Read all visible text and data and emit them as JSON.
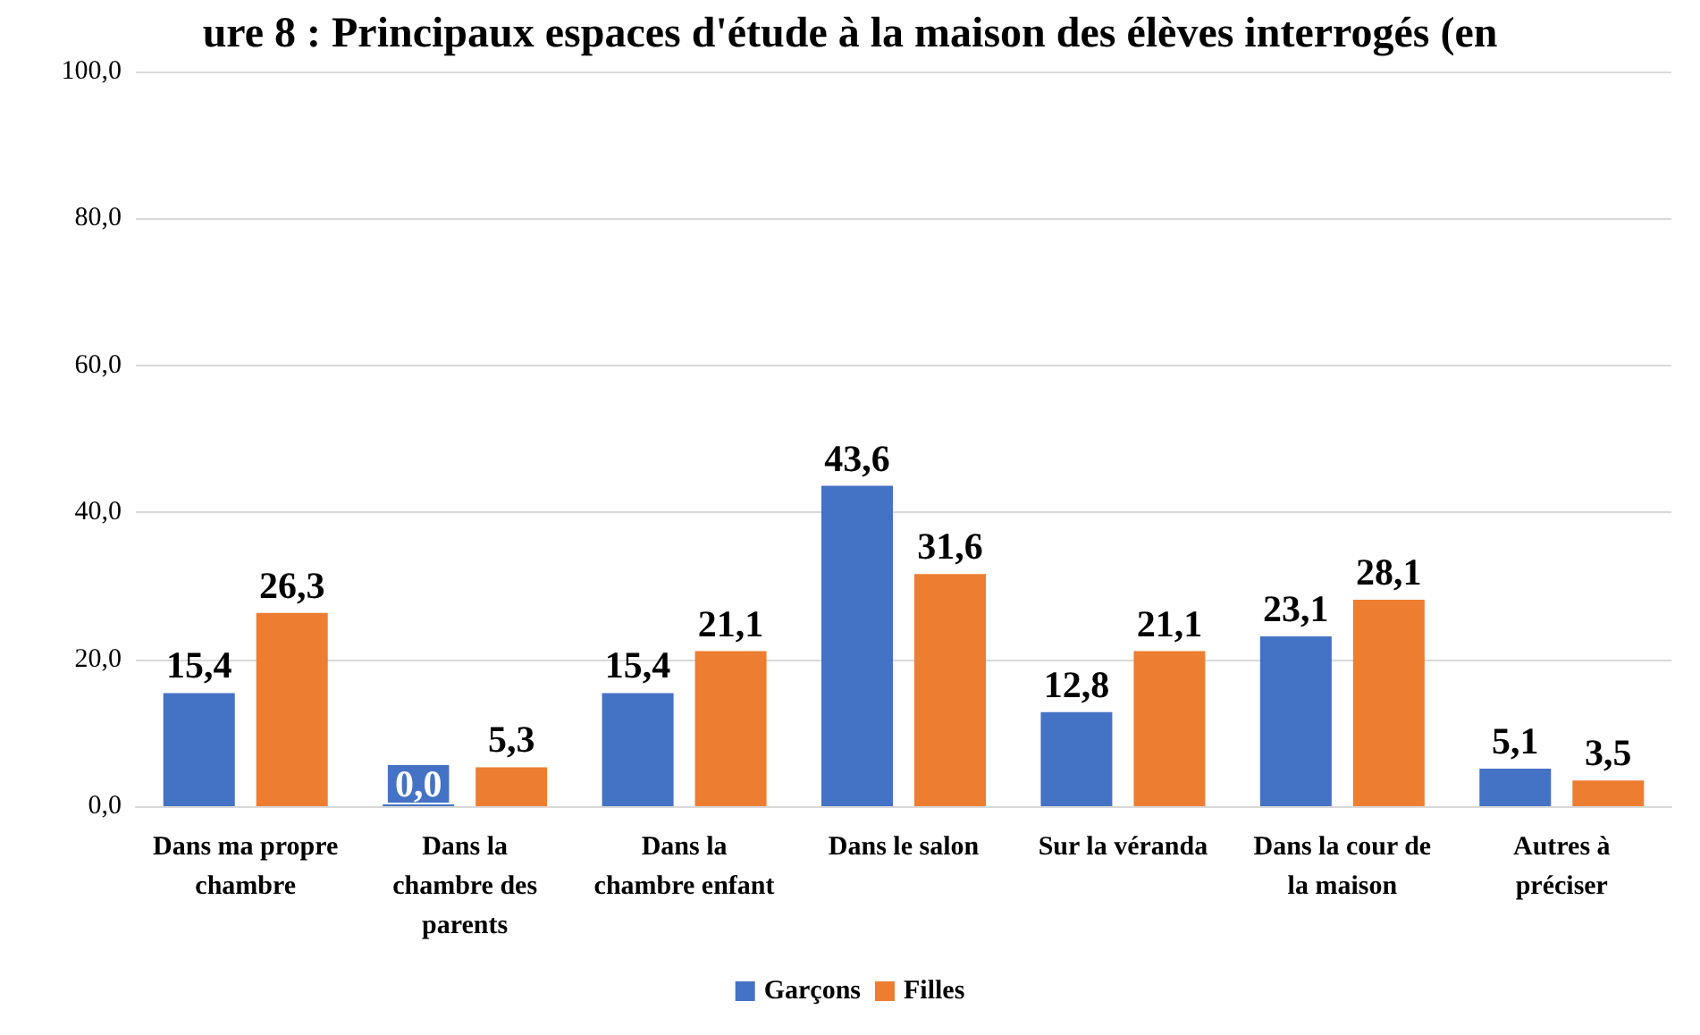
{
  "chart_data": {
    "type": "bar",
    "title": "ure 8 : Principaux espaces d'étude à la maison des élèves interrogés (en",
    "categories": [
      "Dans ma propre\nchambre",
      "Dans la\nchambre des\nparents",
      "Dans la\nchambre enfant",
      "Dans le salon",
      "Sur la véranda",
      "Dans la cour de\nla maison",
      "Autres à\npréciser"
    ],
    "series": [
      {
        "name": "Garçons",
        "color": "#4472c4",
        "values": [
          15.4,
          0.0,
          15.4,
          43.6,
          12.8,
          23.1,
          5.1
        ],
        "value_labels": [
          "15,4",
          "0,0",
          "15,4",
          "43,6",
          "12,8",
          "23,1",
          "5,1"
        ]
      },
      {
        "name": "Filles",
        "color": "#ed7d31",
        "values": [
          26.3,
          5.3,
          21.1,
          31.6,
          21.1,
          28.1,
          3.5
        ],
        "value_labels": [
          "26,3",
          "5,3",
          "21,1",
          "31,6",
          "21,1",
          "28,1",
          "3,5"
        ]
      }
    ],
    "ylim": [
      0,
      100
    ],
    "yticks": [
      {
        "value": 0,
        "label": "0,0"
      },
      {
        "value": 20,
        "label": "20,0"
      },
      {
        "value": 40,
        "label": "40,0"
      },
      {
        "value": 60,
        "label": "60,0"
      },
      {
        "value": 80,
        "label": "80,0"
      },
      {
        "value": 100,
        "label": "100,0"
      }
    ],
    "grid": "y",
    "legend": "bottom"
  }
}
